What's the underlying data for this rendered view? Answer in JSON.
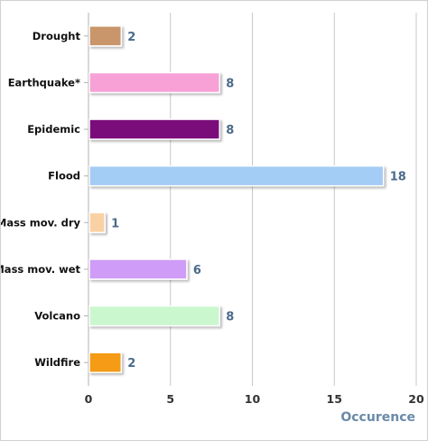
{
  "chart_data": {
    "type": "bar",
    "orientation": "horizontal",
    "categories": [
      "Drought",
      "Earthquake*",
      "Epidemic",
      "Flood",
      "Mass mov. dry",
      "Mass mov. wet",
      "Volcano",
      "Wildfire"
    ],
    "values": [
      2,
      8,
      8,
      18,
      1,
      6,
      8,
      2
    ],
    "colors": [
      "#c8966a",
      "#f7a1d6",
      "#7a0a7a",
      "#a4cdf5",
      "#fad1a4",
      "#cf9cf7",
      "#cbf7cf",
      "#f59b12"
    ],
    "xlabel": "Occurence",
    "ylabel": "",
    "xlim": [
      0,
      20
    ],
    "xticks": [
      0,
      5,
      10,
      15,
      20
    ],
    "grid": true,
    "legend": "none"
  }
}
